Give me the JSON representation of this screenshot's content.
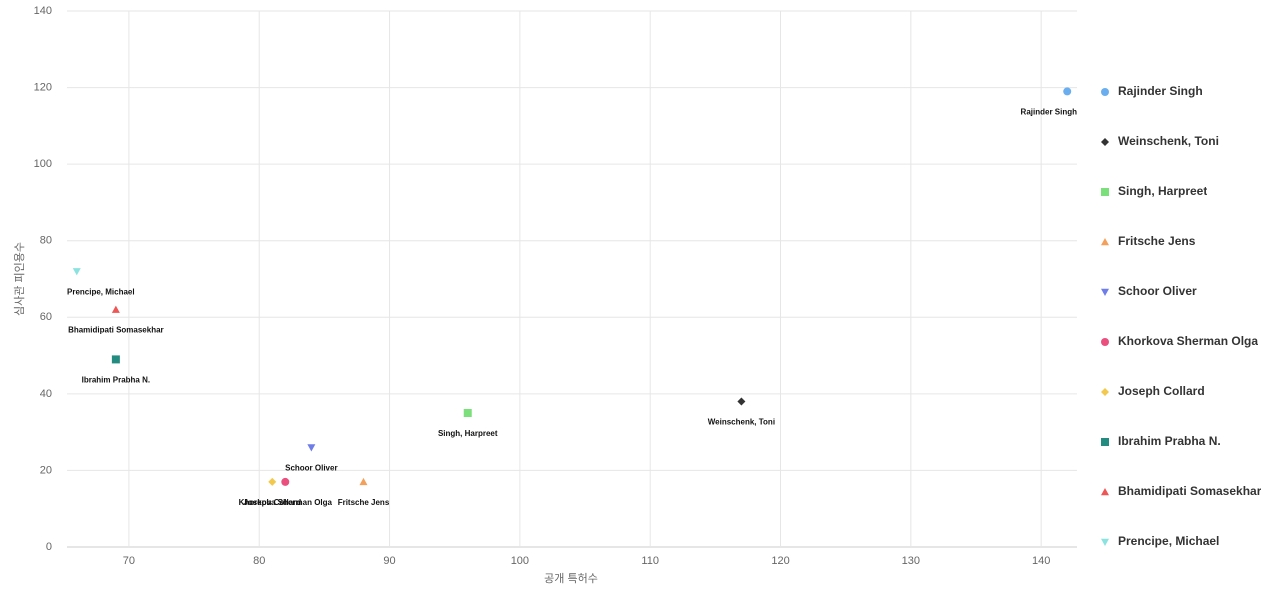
{
  "chart_data": {
    "type": "scatter",
    "x_label": "공개 특허수",
    "y_label": "심사관 피인용수",
    "xlim": [
      65.25,
      142.75
    ],
    "xticks": [
      70,
      80,
      90,
      100,
      110,
      120,
      130,
      140
    ],
    "ylim": [
      0,
      140
    ],
    "yticks": [
      0,
      20,
      40,
      60,
      80,
      100,
      120,
      140
    ],
    "grid": true,
    "legend": "right",
    "series": [
      {
        "name": "Rajinder Singh",
        "color": "#6aaef0",
        "marker": "circle",
        "x": [
          142
        ],
        "values": [
          119
        ]
      },
      {
        "name": "Weinschenk, Toni",
        "color": "#333333",
        "marker": "diamond",
        "x": [
          117
        ],
        "values": [
          38
        ]
      },
      {
        "name": "Singh, Harpreet",
        "color": "#7be07b",
        "marker": "square",
        "x": [
          96
        ],
        "values": [
          35
        ]
      },
      {
        "name": "Fritsche Jens",
        "color": "#f3a05a",
        "marker": "triangle",
        "x": [
          88
        ],
        "values": [
          17
        ]
      },
      {
        "name": "Schoor Oliver",
        "color": "#6f7de8",
        "marker": "triangle-down",
        "x": [
          84
        ],
        "values": [
          26
        ]
      },
      {
        "name": "Khorkova Sherman Olga",
        "color": "#ea4f7d",
        "marker": "circle",
        "x": [
          82
        ],
        "values": [
          17
        ]
      },
      {
        "name": "Joseph Collard",
        "color": "#f2c94c",
        "marker": "diamond",
        "x": [
          81
        ],
        "values": [
          17
        ]
      },
      {
        "name": "Ibrahim Prabha N.",
        "color": "#238b80",
        "marker": "square",
        "x": [
          69
        ],
        "values": [
          49
        ]
      },
      {
        "name": "Bhamidipati Somasekhar",
        "color": "#ee5555",
        "marker": "triangle",
        "x": [
          69
        ],
        "values": [
          62
        ]
      },
      {
        "name": "Prencipe, Michael",
        "color": "#8be3e0",
        "marker": "triangle-down",
        "x": [
          66
        ],
        "values": [
          72
        ]
      }
    ]
  }
}
